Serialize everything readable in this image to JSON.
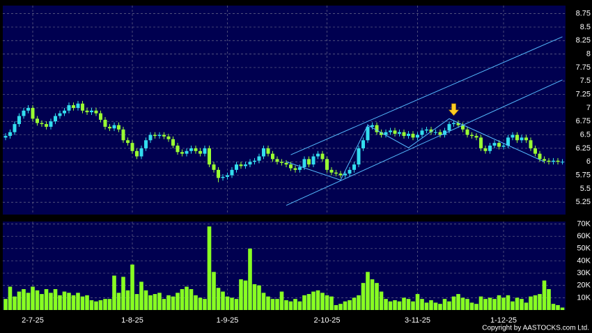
{
  "chart_data": {
    "type": "candlestick",
    "up_color": "#33ddee",
    "down_color": "#99ff33",
    "volume_color": "#88ff22",
    "trendline_color": "#55bbff",
    "marker_color": "#ffcc22",
    "categories": [
      null,
      null,
      null,
      null,
      null,
      null,
      "2-7-25",
      null,
      null,
      null,
      null,
      null,
      null,
      null,
      null,
      null,
      null,
      null,
      null,
      null,
      null,
      null,
      null,
      null,
      null,
      null,
      null,
      null,
      "1-8-25",
      null,
      null,
      null,
      null,
      null,
      null,
      null,
      null,
      null,
      null,
      null,
      null,
      null,
      null,
      null,
      null,
      null,
      null,
      null,
      null,
      "1-9-25",
      null,
      null,
      null,
      null,
      null,
      null,
      null,
      null,
      null,
      null,
      null,
      null,
      null,
      null,
      null,
      null,
      null,
      null,
      null,
      null,
      null,
      "2-10-25",
      null,
      null,
      null,
      null,
      null,
      null,
      null,
      null,
      null,
      null,
      null,
      null,
      null,
      null,
      null,
      null,
      null,
      null,
      null,
      "3-11-25",
      null,
      null,
      null,
      null,
      null,
      null,
      null,
      null,
      null,
      null,
      null,
      null,
      null,
      null,
      null,
      null,
      null,
      null,
      "1-12-25",
      null,
      null,
      null,
      null,
      null,
      null,
      null,
      null,
      null,
      null,
      null,
      null,
      null
    ],
    "open": [
      6.45,
      6.48,
      6.55,
      6.7,
      6.85,
      6.95,
      7.0,
      6.8,
      6.72,
      6.7,
      6.65,
      6.75,
      6.85,
      6.9,
      6.95,
      7.05,
      7.0,
      7.08,
      6.95,
      6.92,
      6.95,
      6.9,
      6.78,
      6.65,
      6.62,
      6.68,
      6.6,
      6.4,
      6.35,
      6.2,
      6.1,
      6.25,
      6.4,
      6.5,
      6.48,
      6.5,
      6.47,
      6.42,
      6.3,
      6.18,
      6.15,
      6.2,
      6.25,
      6.2,
      6.15,
      6.25,
      5.95,
      5.85,
      5.7,
      5.72,
      5.75,
      5.85,
      5.95,
      5.92,
      5.95,
      6.0,
      6.02,
      6.1,
      6.25,
      6.15,
      6.05,
      6.0,
      5.98,
      5.95,
      5.88,
      5.85,
      5.9,
      6.05,
      5.95,
      6.1,
      6.15,
      6.05,
      5.85,
      5.8,
      5.78,
      5.75,
      5.78,
      5.85,
      5.95,
      6.25,
      6.4,
      6.65,
      6.68,
      6.55,
      6.5,
      6.55,
      6.58,
      6.52,
      6.55,
      6.48,
      6.52,
      6.45,
      6.5,
      6.58,
      6.6,
      6.55,
      6.55,
      6.5,
      6.58,
      6.7,
      6.72,
      6.68,
      6.6,
      6.5,
      6.48,
      6.45,
      6.25,
      6.2,
      6.3,
      6.35,
      6.28,
      6.3,
      6.45,
      6.5,
      6.4,
      6.45,
      6.4,
      6.25,
      6.15,
      6.05,
      6.02,
      6.0,
      6.02,
      6.0
    ],
    "high": [
      6.53,
      6.6,
      6.75,
      6.9,
      7.0,
      7.05,
      7.05,
      6.85,
      6.77,
      6.75,
      6.8,
      6.9,
      6.95,
      7.0,
      7.1,
      7.1,
      7.13,
      7.13,
      7.0,
      7.0,
      7.0,
      6.95,
      6.83,
      6.7,
      6.73,
      6.73,
      6.65,
      6.45,
      6.4,
      6.25,
      6.3,
      6.45,
      6.55,
      6.55,
      6.55,
      6.55,
      6.52,
      6.47,
      6.35,
      6.23,
      6.25,
      6.3,
      6.3,
      6.25,
      6.3,
      6.3,
      6.0,
      5.9,
      5.77,
      5.8,
      5.9,
      6.0,
      6.0,
      6.0,
      6.05,
      6.07,
      6.15,
      6.3,
      6.3,
      6.2,
      6.1,
      6.05,
      6.03,
      6.0,
      5.93,
      5.95,
      6.1,
      6.1,
      6.15,
      6.2,
      6.2,
      6.1,
      5.9,
      5.85,
      5.83,
      5.83,
      5.9,
      6.0,
      6.3,
      6.45,
      6.7,
      6.73,
      6.73,
      6.6,
      6.6,
      6.63,
      6.63,
      6.6,
      6.6,
      6.57,
      6.57,
      6.55,
      6.63,
      6.65,
      6.65,
      6.6,
      6.6,
      6.63,
      6.75,
      6.77,
      6.77,
      6.73,
      6.65,
      6.55,
      6.53,
      6.5,
      6.3,
      6.35,
      6.4,
      6.4,
      6.35,
      6.5,
      6.55,
      6.55,
      6.5,
      6.5,
      6.45,
      6.3,
      6.2,
      6.1,
      6.07,
      6.07,
      6.07,
      6.05
    ],
    "low": [
      6.4,
      6.43,
      6.5,
      6.65,
      6.8,
      6.9,
      6.75,
      6.67,
      6.65,
      6.6,
      6.6,
      6.7,
      6.8,
      6.85,
      6.9,
      6.95,
      6.95,
      6.9,
      6.87,
      6.87,
      6.85,
      6.73,
      6.6,
      6.57,
      6.57,
      6.55,
      6.35,
      6.3,
      6.15,
      6.05,
      6.05,
      6.2,
      6.35,
      6.43,
      6.43,
      6.42,
      6.37,
      6.25,
      6.13,
      6.1,
      6.1,
      6.15,
      6.15,
      6.1,
      6.1,
      5.9,
      5.8,
      5.62,
      5.65,
      5.67,
      5.7,
      5.8,
      5.87,
      5.87,
      5.9,
      5.95,
      5.97,
      6.05,
      6.1,
      6.0,
      5.95,
      5.93,
      5.9,
      5.83,
      5.8,
      5.8,
      5.85,
      5.9,
      5.9,
      6.05,
      6.0,
      5.8,
      5.75,
      5.73,
      5.7,
      5.7,
      5.73,
      5.8,
      5.9,
      6.2,
      6.35,
      6.6,
      6.5,
      6.45,
      6.45,
      6.5,
      6.47,
      6.47,
      6.43,
      6.43,
      6.4,
      6.4,
      6.45,
      6.53,
      6.5,
      6.5,
      6.45,
      6.45,
      6.53,
      6.65,
      6.63,
      6.55,
      6.45,
      6.43,
      6.4,
      6.2,
      6.15,
      6.15,
      6.25,
      6.23,
      6.23,
      6.25,
      6.4,
      6.35,
      6.35,
      6.35,
      6.2,
      6.1,
      6.0,
      5.97,
      5.95,
      5.95,
      5.95,
      5.95
    ],
    "close": [
      6.48,
      6.55,
      6.7,
      6.85,
      6.95,
      7.0,
      6.8,
      6.72,
      6.7,
      6.65,
      6.75,
      6.85,
      6.9,
      6.95,
      7.05,
      7.0,
      7.08,
      6.95,
      6.92,
      6.95,
      6.9,
      6.78,
      6.65,
      6.62,
      6.68,
      6.6,
      6.4,
      6.35,
      6.2,
      6.1,
      6.25,
      6.4,
      6.5,
      6.48,
      6.5,
      6.47,
      6.42,
      6.3,
      6.18,
      6.15,
      6.2,
      6.25,
      6.2,
      6.15,
      6.25,
      5.95,
      5.85,
      5.7,
      5.72,
      5.75,
      5.85,
      5.95,
      5.92,
      5.95,
      6.0,
      6.02,
      6.1,
      6.25,
      6.15,
      6.05,
      6.0,
      5.98,
      5.95,
      5.88,
      5.85,
      5.9,
      6.05,
      5.95,
      6.1,
      6.15,
      6.05,
      5.85,
      5.8,
      5.78,
      5.75,
      5.78,
      5.85,
      5.95,
      6.25,
      6.4,
      6.65,
      6.68,
      6.55,
      6.5,
      6.55,
      6.58,
      6.52,
      6.55,
      6.48,
      6.52,
      6.45,
      6.5,
      6.58,
      6.6,
      6.55,
      6.55,
      6.5,
      6.58,
      6.7,
      6.72,
      6.68,
      6.6,
      6.5,
      6.48,
      6.45,
      6.25,
      6.2,
      6.3,
      6.35,
      6.28,
      6.3,
      6.45,
      6.5,
      6.4,
      6.45,
      6.4,
      6.25,
      6.15,
      6.05,
      6.02,
      6.0,
      6.02,
      6.0,
      6.0
    ],
    "volume": [
      9000,
      19000,
      11000,
      15000,
      17000,
      14000,
      19000,
      16000,
      13000,
      17000,
      14000,
      17000,
      12000,
      15000,
      14000,
      12000,
      14000,
      11000,
      12000,
      8000,
      7000,
      8000,
      9000,
      9000,
      28000,
      14000,
      27000,
      16000,
      37000,
      13000,
      23000,
      16000,
      12000,
      13000,
      14000,
      9000,
      12000,
      11000,
      14000,
      17000,
      19000,
      17000,
      12000,
      10000,
      9000,
      68000,
      31000,
      18000,
      15000,
      11000,
      10000,
      9000,
      25000,
      24000,
      50000,
      21000,
      20000,
      14000,
      11000,
      9000,
      9000,
      15000,
      8000,
      7000,
      9000,
      7000,
      12000,
      13000,
      15000,
      16000,
      14000,
      12000,
      11000,
      4000,
      5000,
      7000,
      8000,
      10000,
      12000,
      22000,
      31000,
      25000,
      22000,
      15000,
      9000,
      7000,
      8000,
      7000,
      10000,
      9000,
      7000,
      13000,
      9000,
      6000,
      8000,
      6000,
      5000,
      9000,
      7000,
      11000,
      13000,
      10000,
      9000,
      6000,
      5000,
      11000,
      9000,
      10000,
      9000,
      12000,
      10000,
      12000,
      7000,
      10000,
      9000,
      6000,
      11000,
      12000,
      13000,
      24000,
      17000,
      5000,
      4000,
      2000
    ],
    "ylim": [
      5.02,
      8.9
    ],
    "yticks": [
      5.25,
      5.5,
      5.75,
      6,
      6.25,
      6.5,
      6.75,
      7,
      7.25,
      7.5,
      7.75,
      8,
      8.25,
      8.5,
      8.75
    ],
    "volume_ylim": [
      0,
      72000
    ],
    "volume_yticks": [
      {
        "value": 10000,
        "label": "10K"
      },
      {
        "value": 20000,
        "label": "20K"
      },
      {
        "value": 30000,
        "label": "30K"
      },
      {
        "value": 40000,
        "label": "40K"
      },
      {
        "value": 50000,
        "label": "50K"
      },
      {
        "value": 60000,
        "label": "60K"
      },
      {
        "value": 70000,
        "label": "70K"
      }
    ],
    "grid": true,
    "trendlines": [
      {
        "x": [
          62,
          123
        ],
        "y": [
          5.19,
          7.52
        ]
      },
      {
        "x": [
          63,
          123
        ],
        "y": [
          6.13,
          8.32
        ]
      },
      {
        "x": [
          62,
          74,
          80,
          89,
          98,
          119
        ],
        "y": [
          6.0,
          5.66,
          6.68,
          6.26,
          6.8,
          6.0
        ]
      }
    ],
    "marker": {
      "x": 99,
      "y": 6.95
    },
    "copyright": "Copyright by AASTOCKS.com Ltd."
  }
}
